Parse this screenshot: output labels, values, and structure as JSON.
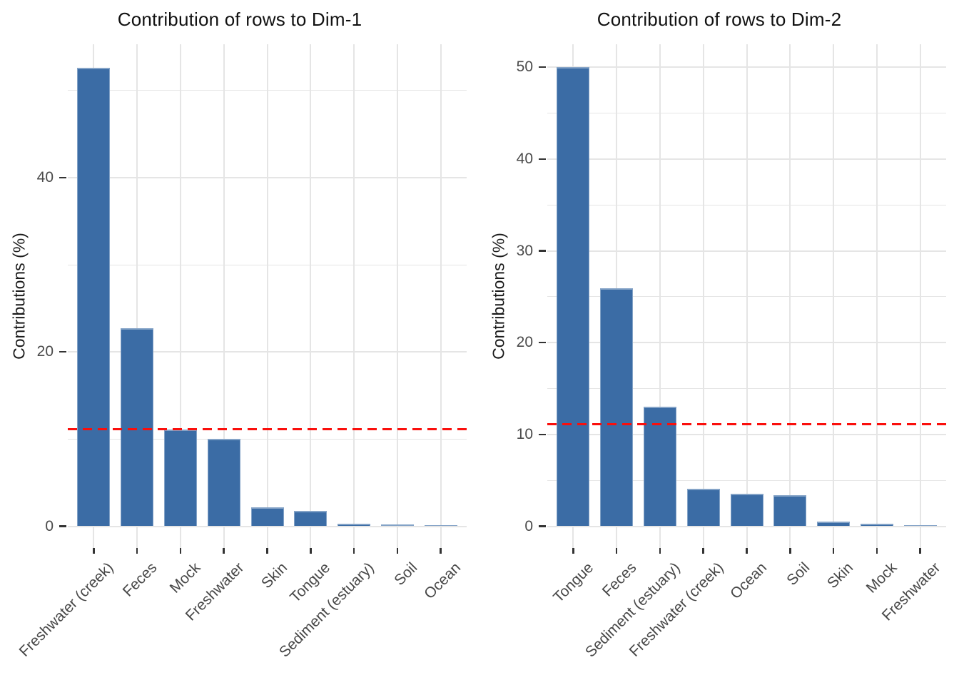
{
  "figure": {
    "kind": "side-by-side bar charts",
    "background": "#FFFFFF"
  },
  "colors": {
    "background": "#FFFFFF",
    "bar": "#3B6CA5",
    "bar_rim": "#84A3C7",
    "reference_line": "#FA0F0C",
    "grid": "#E5E5E5",
    "tick_mark": "#333333",
    "tick_text": "#4A4A4A",
    "title_text": "#111111",
    "axis_title_text": "#1A1A1A"
  },
  "chart_data": [
    {
      "type": "bar",
      "title": "Contribution of rows to Dim-1",
      "xlabel": "",
      "ylabel": "Contributions (%)",
      "categories": [
        "Freshwater (creek)",
        "Feces",
        "Mock",
        "Freshwater",
        "Skin",
        "Tongue",
        "Sediment (estuary)",
        "Soil",
        "Ocean"
      ],
      "values": [
        52.6,
        22.7,
        11.1,
        10.0,
        2.2,
        1.8,
        0.3,
        0.2,
        0.15
      ],
      "y_ticks": [
        0,
        20,
        40
      ],
      "y_minor": [
        10,
        30,
        50
      ],
      "ylim": [
        0,
        55.3
      ],
      "reference_line": 11.1,
      "reference_line_style": "dashed",
      "grid": true,
      "legend": "none"
    },
    {
      "type": "bar",
      "title": "Contribution of rows to Dim-2",
      "xlabel": "",
      "ylabel": "Contributions (%)",
      "categories": [
        "Tongue",
        "Feces",
        "Sediment (estuary)",
        "Freshwater (creek)",
        "Ocean",
        "Soil",
        "Skin",
        "Mock",
        "Freshwater"
      ],
      "values": [
        50.0,
        25.9,
        13.0,
        4.1,
        3.5,
        3.4,
        0.5,
        0.3,
        0.15
      ],
      "y_ticks": [
        0,
        10,
        20,
        30,
        40,
        50
      ],
      "y_minor": [
        5,
        15,
        25,
        35,
        45
      ],
      "ylim": [
        0,
        52.5
      ],
      "reference_line": 11.1,
      "reference_line_style": "dashed",
      "grid": true,
      "legend": "none"
    }
  ]
}
